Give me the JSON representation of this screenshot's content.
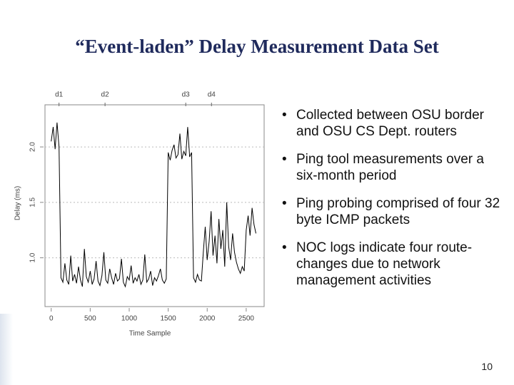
{
  "title": "“Event-laden” Delay Measurement Data Set",
  "bullets": [
    "Collected between OSU border and OSU CS Dept. routers",
    "Ping tool measurements over a six-month period",
    "Ping probing comprised of four 32 byte ICMP packets",
    "NOC logs indicate four route-changes due to network management activities"
  ],
  "page_number": "10",
  "chart_data": {
    "type": "line",
    "x_label": "Time Sample",
    "y_label": "Delay (ms)",
    "xlim": [
      -80,
      2730
    ],
    "ylim": [
      0.56,
      2.38
    ],
    "xticks": [
      0,
      500,
      1000,
      1500,
      2000,
      2500
    ],
    "yticks": [
      {
        "value": 1.0,
        "label": "1.0"
      },
      1.5,
      {
        "value": 2.0,
        "label": "2.0"
      }
    ],
    "annotations": [
      {
        "text": "d1",
        "x": 100
      },
      {
        "text": "d2",
        "x": 690
      },
      {
        "text": "d3",
        "x": 1725
      },
      {
        "text": "d4",
        "x": 2055
      }
    ],
    "x": [
      0,
      25,
      50,
      75,
      100,
      125,
      150,
      175,
      200,
      225,
      250,
      275,
      300,
      325,
      350,
      375,
      400,
      425,
      450,
      475,
      500,
      525,
      550,
      575,
      600,
      625,
      650,
      675,
      700,
      725,
      750,
      775,
      800,
      825,
      850,
      875,
      900,
      925,
      950,
      975,
      1000,
      1025,
      1050,
      1075,
      1100,
      1125,
      1150,
      1175,
      1200,
      1225,
      1250,
      1275,
      1300,
      1325,
      1350,
      1375,
      1400,
      1425,
      1450,
      1475,
      1500,
      1525,
      1550,
      1575,
      1600,
      1625,
      1650,
      1675,
      1700,
      1725,
      1750,
      1775,
      1800,
      1825,
      1850,
      1875,
      1900,
      1925,
      1950,
      1975,
      2000,
      2025,
      2050,
      2075,
      2100,
      2125,
      2150,
      2175,
      2200,
      2225,
      2250,
      2275,
      2300,
      2325,
      2350,
      2375,
      2400,
      2425,
      2450,
      2475,
      2500,
      2525,
      2550,
      2575,
      2600,
      2625
    ],
    "series": [
      {
        "color": "#000000",
        "values": [
          2.05,
          2.18,
          1.98,
          2.22,
          2.0,
          0.82,
          0.78,
          0.95,
          0.8,
          0.76,
          1.02,
          0.79,
          0.85,
          0.77,
          0.92,
          0.8,
          0.74,
          1.08,
          0.83,
          0.78,
          0.88,
          0.76,
          0.81,
          0.97,
          0.79,
          0.75,
          0.84,
          1.05,
          0.8,
          0.77,
          0.9,
          0.82,
          0.76,
          0.86,
          0.79,
          0.81,
          0.99,
          0.78,
          0.74,
          0.83,
          0.8,
          0.93,
          0.77,
          0.82,
          0.79,
          0.85,
          0.76,
          0.8,
          1.03,
          0.78,
          0.81,
          0.88,
          0.75,
          0.82,
          0.79,
          0.84,
          0.9,
          0.8,
          0.77,
          0.81,
          1.95,
          1.88,
          1.97,
          2.02,
          1.9,
          1.93,
          2.12,
          1.89,
          1.96,
          1.92,
          2.18,
          1.91,
          1.95,
          0.82,
          0.78,
          0.85,
          0.8,
          0.79,
          1.05,
          1.28,
          0.98,
          1.15,
          1.42,
          1.02,
          1.2,
          0.95,
          1.35,
          1.08,
          1.25,
          0.92,
          1.5,
          1.1,
          0.98,
          1.22,
          1.05,
          0.96,
          0.9,
          0.86,
          0.92,
          0.88,
          1.25,
          1.38,
          1.2,
          1.45,
          1.3,
          1.22
        ]
      }
    ]
  }
}
